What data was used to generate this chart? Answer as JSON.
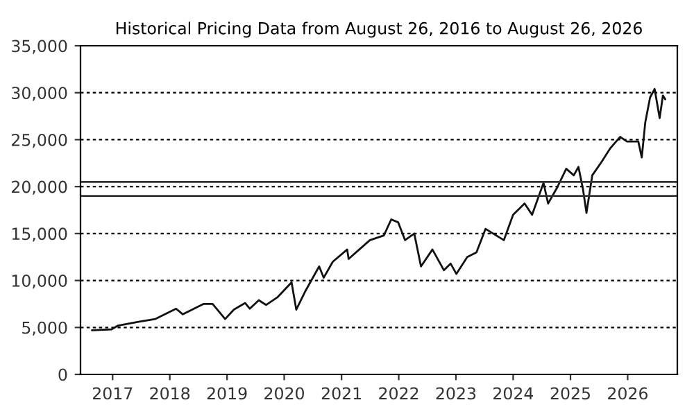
{
  "chart_data": {
    "type": "line",
    "title": "Historical Pricing Data from August 26, 2016 to August 26, 2026",
    "x": [
      "2016-08-22",
      "2016-12-25",
      "2017-02-05",
      "2017-06-15",
      "2017-10-01",
      "2018-02-10",
      "2018-03-25",
      "2018-08-03",
      "2018-10-01",
      "2018-12-20",
      "2019-02-14",
      "2019-04-27",
      "2019-05-26",
      "2019-07-23",
      "2019-09-07",
      "2019-11-18",
      "2020-02-17",
      "2020-03-18",
      "2020-05-16",
      "2020-08-11",
      "2020-09-09",
      "2020-11-06",
      "2021-02-06",
      "2021-02-15",
      "2021-07-01",
      "2021-09-28",
      "2021-11-14",
      "2021-12-28",
      "2022-02-10",
      "2022-04-10",
      "2022-05-23",
      "2022-08-04",
      "2022-10-16",
      "2022-11-28",
      "2023-01-04",
      "2023-03-14",
      "2023-05-12",
      "2023-07-09",
      "2023-11-03",
      "2024-01-01",
      "2024-03-14",
      "2024-05-01",
      "2024-07-13",
      "2024-08-11",
      "2024-10-08",
      "2024-12-05",
      "2025-01-22",
      "2025-02-21",
      "2025-03-22",
      "2025-04-13",
      "2025-05-20",
      "2025-07-17",
      "2025-09-13",
      "2025-11-14",
      "2025-12-28",
      "2026-03-10",
      "2026-04-01",
      "2026-04-23",
      "2026-05-24",
      "2026-06-22",
      "2026-07-24",
      "2026-08-14",
      "2026-08-29"
    ],
    "values": [
      4700,
      4800,
      5200,
      5600,
      5900,
      7000,
      6400,
      7500,
      7500,
      5900,
      6900,
      7600,
      7000,
      7900,
      7400,
      8200,
      9800,
      6900,
      8900,
      11500,
      10300,
      12000,
      13300,
      12300,
      14300,
      14800,
      16500,
      16200,
      14300,
      15000,
      11500,
      13300,
      11100,
      11800,
      10700,
      12500,
      13000,
      15500,
      14300,
      17000,
      18200,
      17000,
      20400,
      18200,
      19900,
      21900,
      21200,
      22100,
      19700,
      17200,
      21200,
      22600,
      24100,
      25300,
      24800,
      24800,
      23100,
      26800,
      29500,
      30400,
      27300,
      29700,
      29300
    ],
    "color": "#111111",
    "xlim": [
      "2016-06-10",
      "2026-11-14"
    ],
    "xticks": [
      {
        "value": "2017-01-01",
        "label": "2017"
      },
      {
        "value": "2018-01-01",
        "label": "2018"
      },
      {
        "value": "2019-01-01",
        "label": "2019"
      },
      {
        "value": "2020-01-01",
        "label": "2020"
      },
      {
        "value": "2021-01-01",
        "label": "2021"
      },
      {
        "value": "2022-01-01",
        "label": "2022"
      },
      {
        "value": "2023-01-01",
        "label": "2023"
      },
      {
        "value": "2024-01-01",
        "label": "2024"
      },
      {
        "value": "2025-01-01",
        "label": "2025"
      },
      {
        "value": "2026-01-01",
        "label": "2026"
      }
    ],
    "ylim": [
      0,
      35000
    ],
    "yticks": [
      0,
      {
        "value": 5000,
        "label": "5,000"
      },
      {
        "value": 10000,
        "label": "10,000"
      },
      {
        "value": 15000,
        "label": "15,000"
      },
      {
        "value": 20000,
        "label": "20,000"
      },
      {
        "value": 25000,
        "label": "25,000"
      },
      {
        "value": 30000,
        "label": "30,000"
      },
      {
        "value": 35000,
        "label": "35,000"
      }
    ],
    "grid": "y",
    "ref_lines": [
      {
        "axis": "y",
        "value": 20500,
        "color": "#333333",
        "line_style": "solid"
      },
      {
        "axis": "y",
        "value": 19000,
        "color": "#333333",
        "line_style": "solid"
      }
    ]
  }
}
